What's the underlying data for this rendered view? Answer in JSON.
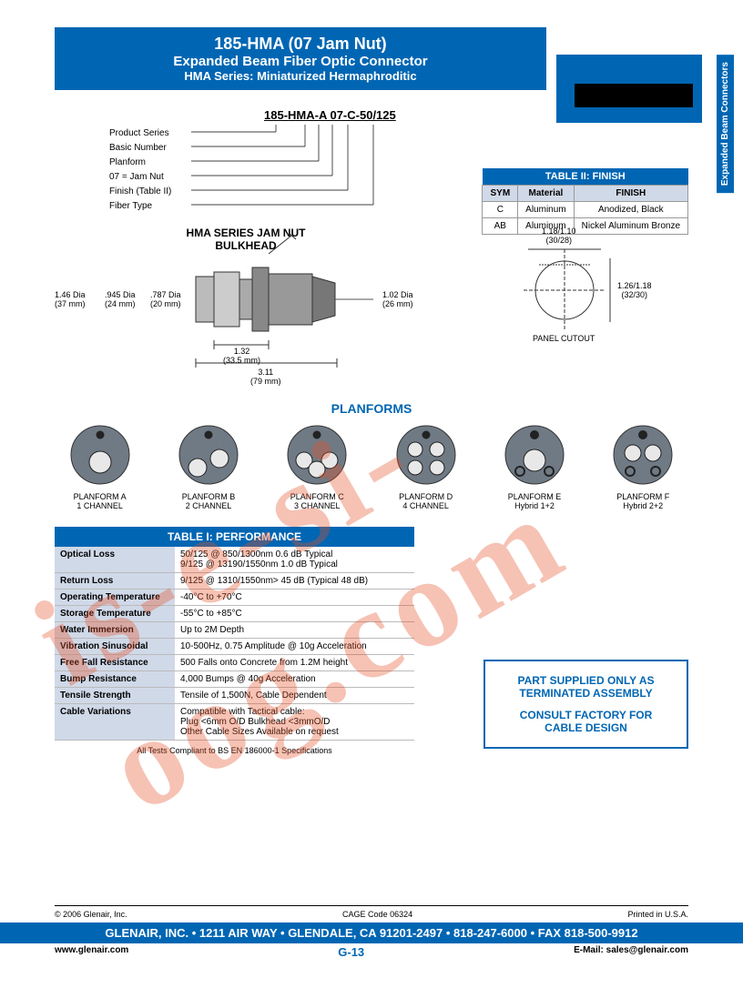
{
  "header": {
    "line1": "185-HMA (07 Jam Nut)",
    "line2": "Expanded Beam Fiber Optic Connector",
    "line3": "HMA Series: Miniaturized Hermaphroditic",
    "side_tab": "Expanded Beam Connectors"
  },
  "part_number": {
    "code": "185-HMA-A 07-C-50/125",
    "labels": [
      "Product Series",
      "Basic Number",
      "Planform",
      "07 = Jam Nut",
      "Finish (Table II)",
      "Fiber Type"
    ]
  },
  "finish_table": {
    "title": "TABLE II: FINISH",
    "headers": [
      "SYM",
      "Material",
      "FINISH"
    ],
    "rows": [
      [
        "C",
        "Aluminum",
        "Anodized, Black"
      ],
      [
        "AB",
        "Aluminum",
        "Nickel Aluminum Bronze"
      ]
    ]
  },
  "diagram": {
    "title": "HMA SERIES JAM NUT BULKHEAD",
    "dims": {
      "d1": "1.46 Dia\n(37 mm)",
      "d2": ".945 Dia\n(24 mm)",
      "d3": ".787 Dia\n(20 mm)",
      "d4": "1.02 Dia\n(26 mm)",
      "d5": "1.32\n(33.5 mm)",
      "d6": "3.11\n(79 mm)",
      "cutout_w": "1.18/1.10\n(30/28)",
      "cutout_h": "1.26/1.18\n(32/30)",
      "cutout_label": "PANEL CUTOUT"
    }
  },
  "planforms": {
    "title": "PLANFORMS",
    "items": [
      {
        "label1": "PLANFORM A",
        "label2": "1 CHANNEL",
        "holes": [
          [
            0,
            -22,
            4
          ],
          [
            0,
            8,
            12
          ]
        ],
        "hybrid": false
      },
      {
        "label1": "PLANFORM B",
        "label2": "2 CHANNEL",
        "holes": [
          [
            0,
            -22,
            4
          ],
          [
            12,
            4,
            10
          ],
          [
            -12,
            14,
            10
          ]
        ],
        "hybrid": false
      },
      {
        "label1": "PLANFORM C",
        "label2": "3 CHANNEL",
        "holes": [
          [
            0,
            -22,
            4
          ],
          [
            -14,
            6,
            9
          ],
          [
            14,
            6,
            9
          ],
          [
            0,
            16,
            9
          ]
        ],
        "hybrid": false
      },
      {
        "label1": "PLANFORM D",
        "label2": "4 CHANNEL",
        "holes": [
          [
            0,
            -22,
            4
          ],
          [
            -12,
            -6,
            8
          ],
          [
            12,
            -6,
            8
          ],
          [
            -12,
            14,
            8
          ],
          [
            12,
            14,
            8
          ]
        ],
        "hybrid": false
      },
      {
        "label1": "PLANFORM E",
        "label2": "Hybrid 1+2",
        "holes": [
          [
            0,
            -22,
            4
          ],
          [
            0,
            6,
            12
          ],
          [
            -16,
            18,
            5
          ],
          [
            16,
            18,
            5
          ]
        ],
        "hybrid": true
      },
      {
        "label1": "PLANFORM F",
        "label2": "Hybrid 2+2",
        "holes": [
          [
            0,
            -22,
            4
          ],
          [
            -11,
            -2,
            9
          ],
          [
            11,
            -2,
            9
          ],
          [
            -14,
            18,
            5
          ],
          [
            14,
            18,
            5
          ]
        ],
        "hybrid": true
      }
    ]
  },
  "perf_table": {
    "title": "TABLE I: PERFORMANCE",
    "rows": [
      [
        "Optical Loss",
        "50/125 @ 850/1300nm 0.6 dB Typical\n9/125 @ 13190/1550nm 1.0 dB Typical"
      ],
      [
        "Return Loss",
        "9/125 @ 1310/1550nm> 45 dB (Typical 48 dB)"
      ],
      [
        "Operating Temperature",
        "-40°C to +70°C"
      ],
      [
        "Storage Temperature",
        "-55°C to +85°C"
      ],
      [
        "Water Immersion",
        "Up to 2M Depth"
      ],
      [
        "Vibration Sinusoidal",
        "10-500Hz, 0.75 Amplitude @ 10g Acceleration"
      ],
      [
        "Free Fall Resistance",
        "500 Falls onto Concrete from 1.2M height"
      ],
      [
        "Bump Resistance",
        "4,000 Bumps @ 40g Acceleration"
      ],
      [
        "Tensile Strength",
        "Tensile of 1,500N, Cable Dependent"
      ],
      [
        "Cable Variations",
        "Compatible with Tactical cable:\nPlug <6mm O/D Bulkhead <3mmO/D\nOther Cable Sizes Available on request"
      ]
    ],
    "note": "All Tests Compliant to BS EN 186000-1 Specifications"
  },
  "factory_box": {
    "line1": "PART SUPPLIED ONLY AS TERMINATED ASSEMBLY",
    "line2": "CONSULT FACTORY FOR CABLE DESIGN"
  },
  "footer": {
    "copyright": "© 2006 Glenair, Inc.",
    "cage": "CAGE Code 06324",
    "printed": "Printed in U.S.A.",
    "address": "GLENAIR, INC. • 1211 AIR WAY • GLENDALE, CA 91201-2497 • 818-247-6000 • FAX 818-500-9912",
    "web": "www.glenair.com",
    "page": "G-13",
    "email": "E-Mail: sales@glenair.com"
  },
  "watermark": "is-e-si-oog.com",
  "colors": {
    "blue": "#0066b3",
    "lightblue": "#d0d9e8",
    "watermark": "rgba(230,80,40,0.35)"
  }
}
